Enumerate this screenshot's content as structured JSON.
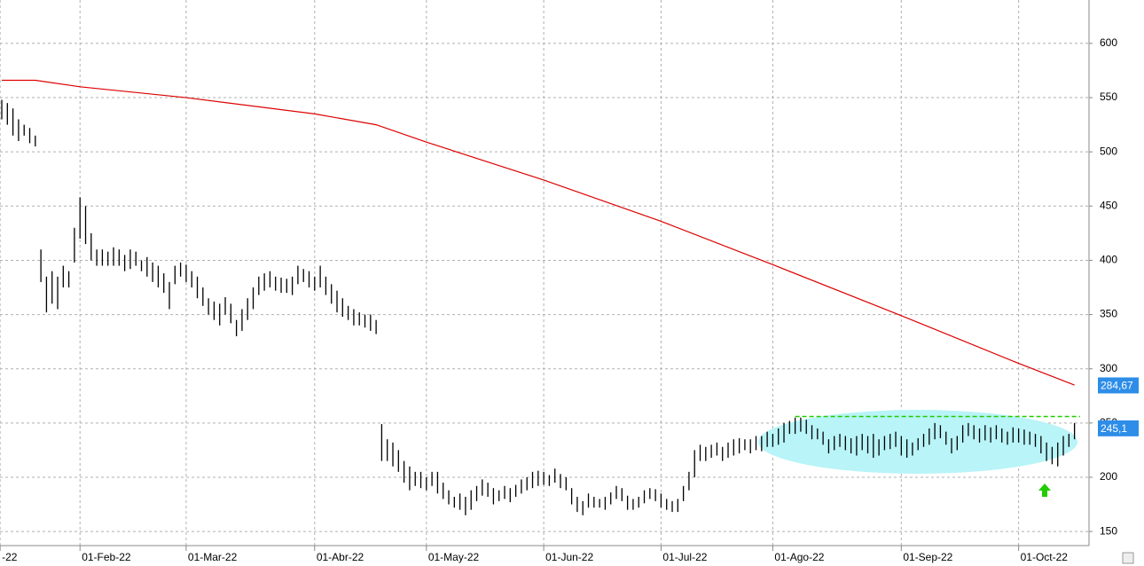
{
  "chart_data": {
    "type": "hilo",
    "x": [
      0,
      1,
      2,
      3,
      4,
      5,
      6,
      7,
      8,
      9,
      10,
      11,
      12,
      13,
      14,
      15,
      16,
      17,
      18,
      19,
      20,
      21,
      22,
      23,
      24,
      25,
      26,
      27,
      28,
      29,
      30,
      31,
      32,
      33,
      34,
      35,
      36,
      37,
      38,
      39,
      40,
      41,
      42,
      43,
      44,
      45,
      46,
      47,
      48,
      49,
      50,
      51,
      52,
      53,
      54,
      55,
      56,
      57,
      58,
      59,
      60,
      61,
      62,
      63,
      64,
      65,
      66,
      67,
      68,
      69,
      70,
      71,
      72,
      73,
      74,
      75,
      76,
      77,
      78,
      79,
      80,
      81,
      82,
      83,
      84,
      85,
      86,
      87,
      88,
      89,
      90,
      91,
      92,
      93,
      94,
      95,
      96,
      97,
      98,
      99,
      100,
      101,
      102,
      103,
      104,
      105,
      106,
      107,
      108,
      109,
      110,
      111,
      112,
      113,
      114,
      115,
      116,
      117,
      118,
      119,
      120,
      121,
      122,
      123,
      124,
      125,
      126,
      127,
      128,
      129,
      130,
      131,
      132,
      133,
      134,
      135,
      136,
      137,
      138,
      139,
      140,
      141,
      142,
      143,
      144,
      145,
      146,
      147,
      148,
      149,
      150,
      151,
      152,
      153,
      154,
      155,
      156,
      157,
      158,
      159,
      160,
      161,
      162,
      163,
      164,
      165,
      166,
      167,
      168,
      169,
      170,
      171,
      172,
      173,
      174,
      175,
      176,
      177,
      178,
      179,
      180,
      181,
      182,
      183,
      184,
      185,
      186,
      187,
      188,
      189,
      190,
      191,
      192
    ],
    "high": [
      548,
      545,
      540,
      530,
      525,
      522,
      515,
      410,
      385,
      390,
      385,
      395,
      390,
      430,
      458,
      450,
      425,
      410,
      410,
      408,
      412,
      410,
      405,
      410,
      408,
      400,
      403,
      398,
      395,
      388,
      380,
      395,
      398,
      396,
      390,
      385,
      375,
      365,
      362,
      360,
      366,
      360,
      345,
      355,
      365,
      375,
      385,
      388,
      390,
      385,
      384,
      383,
      385,
      395,
      392,
      390,
      385,
      395,
      385,
      378,
      372,
      365,
      358,
      355,
      352,
      350,
      350,
      345,
      249,
      235,
      232,
      225,
      215,
      210,
      205,
      205,
      200,
      205,
      205,
      195,
      188,
      182,
      185,
      182,
      188,
      192,
      198,
      195,
      190,
      188,
      192,
      190,
      193,
      198,
      200,
      205,
      206,
      205,
      202,
      208,
      203,
      200,
      190,
      182,
      178,
      185,
      182,
      180,
      182,
      186,
      192,
      190,
      183,
      180,
      182,
      188,
      190,
      189,
      185,
      180,
      178,
      180,
      192,
      205,
      225,
      230,
      228,
      230,
      232,
      228,
      232,
      235,
      236,
      235,
      235,
      238,
      238,
      242,
      240,
      245,
      250,
      252,
      255,
      255,
      253,
      248,
      245,
      242,
      235,
      238,
      240,
      238,
      236,
      238,
      240,
      238,
      240,
      235,
      238,
      240,
      242,
      238,
      235,
      232,
      236,
      240,
      245,
      250,
      248,
      242,
      236,
      238,
      248,
      250,
      248,
      245,
      248,
      246,
      248,
      245,
      242,
      246,
      245,
      244,
      242,
      240,
      238,
      232,
      228,
      232,
      238,
      240,
      250
    ],
    "low": [
      530,
      525,
      515,
      510,
      515,
      508,
      505,
      380,
      352,
      360,
      355,
      375,
      375,
      398,
      420,
      415,
      400,
      395,
      395,
      395,
      395,
      395,
      390,
      392,
      395,
      390,
      385,
      380,
      375,
      370,
      355,
      378,
      385,
      380,
      375,
      365,
      358,
      350,
      345,
      340,
      350,
      342,
      330,
      335,
      345,
      355,
      368,
      372,
      375,
      372,
      370,
      370,
      368,
      378,
      380,
      375,
      372,
      375,
      368,
      360,
      352,
      348,
      345,
      340,
      340,
      338,
      335,
      332,
      215,
      215,
      210,
      205,
      195,
      188,
      192,
      190,
      188,
      192,
      185,
      180,
      175,
      172,
      170,
      165,
      170,
      178,
      183,
      182,
      175,
      178,
      180,
      177,
      182,
      185,
      188,
      190,
      192,
      193,
      192,
      195,
      190,
      188,
      175,
      168,
      165,
      172,
      172,
      172,
      170,
      175,
      180,
      178,
      170,
      170,
      172,
      176,
      180,
      178,
      172,
      170,
      168,
      168,
      178,
      188,
      200,
      215,
      215,
      218,
      220,
      215,
      218,
      220,
      222,
      225,
      222,
      225,
      224,
      228,
      228,
      230,
      232,
      240,
      240,
      242,
      240,
      235,
      235,
      230,
      222,
      225,
      228,
      225,
      222,
      220,
      225,
      222,
      218,
      220,
      225,
      226,
      228,
      220,
      218,
      220,
      225,
      228,
      230,
      235,
      236,
      230,
      222,
      225,
      232,
      238,
      235,
      232,
      234,
      232,
      235,
      232,
      230,
      232,
      232,
      230,
      230,
      228,
      222,
      215,
      212,
      210,
      220,
      228,
      235
    ],
    "color": "#000000",
    "ma": {
      "color": "#dd0000",
      "x": [
        0,
        6,
        14,
        33,
        56,
        67,
        76,
        97,
        118,
        138,
        161,
        182,
        192
      ],
      "values": [
        566,
        566,
        560,
        550,
        535,
        525,
        509,
        474,
        436,
        396,
        349,
        305,
        285
      ]
    },
    "resistance": {
      "value": 256,
      "x": [
        142,
        193
      ],
      "color": "#22cc00"
    },
    "price_tags": [
      {
        "value": 284.67,
        "label": "284,67"
      },
      {
        "value": 245.1,
        "label": "245,1"
      }
    ],
    "xlim": [
      -0.32,
      194.6
    ],
    "ylim": [
      137,
      640
    ],
    "xticks": [
      {
        "value": -0.3,
        "label": "-22"
      },
      {
        "value": 14,
        "label": "01-Feb-22"
      },
      {
        "value": 33,
        "label": "01-Mar-22"
      },
      {
        "value": 56,
        "label": "01-Abr-22"
      },
      {
        "value": 76,
        "label": "01-May-22"
      },
      {
        "value": 97,
        "label": "01-Jun-22"
      },
      {
        "value": 118,
        "label": "01-Jul-22"
      },
      {
        "value": 138,
        "label": "01-Ago-22"
      },
      {
        "value": 161,
        "label": "01-Sep-22"
      },
      {
        "value": 182,
        "label": "01-Oct-22"
      }
    ],
    "yticks": [
      150,
      200,
      250,
      300,
      350,
      400,
      450,
      500,
      550,
      600
    ],
    "grid": true
  }
}
